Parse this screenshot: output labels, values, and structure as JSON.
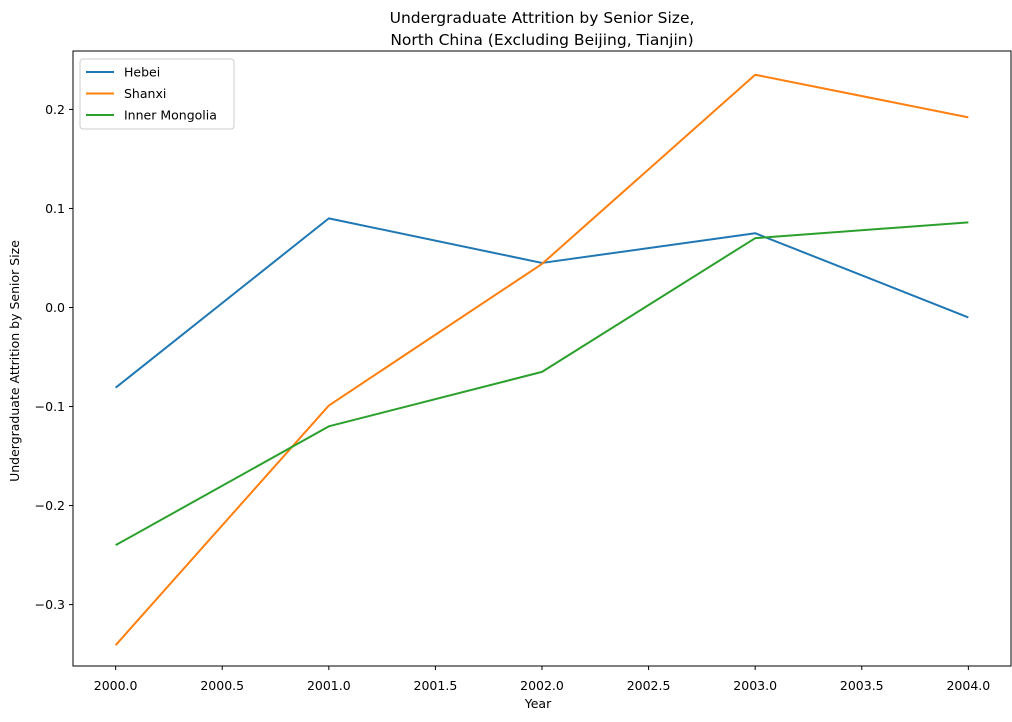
{
  "chart_data": {
    "type": "line",
    "title": "Undergraduate Attrition by Senior Size,\nNorth China (Excluding Beijing, Tianjin)",
    "xlabel": "Year",
    "ylabel": "Undergraduate Attrition by Senior Size",
    "x": [
      2000,
      2001,
      2002,
      2003,
      2004
    ],
    "xticks": [
      "2000.0",
      "2000.5",
      "2001.0",
      "2001.5",
      "2002.0",
      "2002.5",
      "2003.0",
      "2003.5",
      "2004.0"
    ],
    "yticks": [
      "−0.3",
      "−0.2",
      "−0.1",
      "0.0",
      "0.1",
      "0.2"
    ],
    "xlim": [
      1999.8,
      2004.2
    ],
    "ylim": [
      -0.362,
      0.259
    ],
    "grid": false,
    "legend_position": "upper-left",
    "series": [
      {
        "name": "Hebei",
        "color": "#1f77b4",
        "values": [
          -0.081,
          0.09,
          0.045,
          0.075,
          -0.01
        ]
      },
      {
        "name": "Shanxi",
        "color": "#ff7f0e",
        "values": [
          -0.341,
          -0.099,
          0.044,
          0.235,
          0.192
        ]
      },
      {
        "name": "Inner Mongolia",
        "color": "#2ca02c",
        "values": [
          -0.24,
          -0.12,
          -0.065,
          0.07,
          0.086
        ]
      }
    ]
  }
}
